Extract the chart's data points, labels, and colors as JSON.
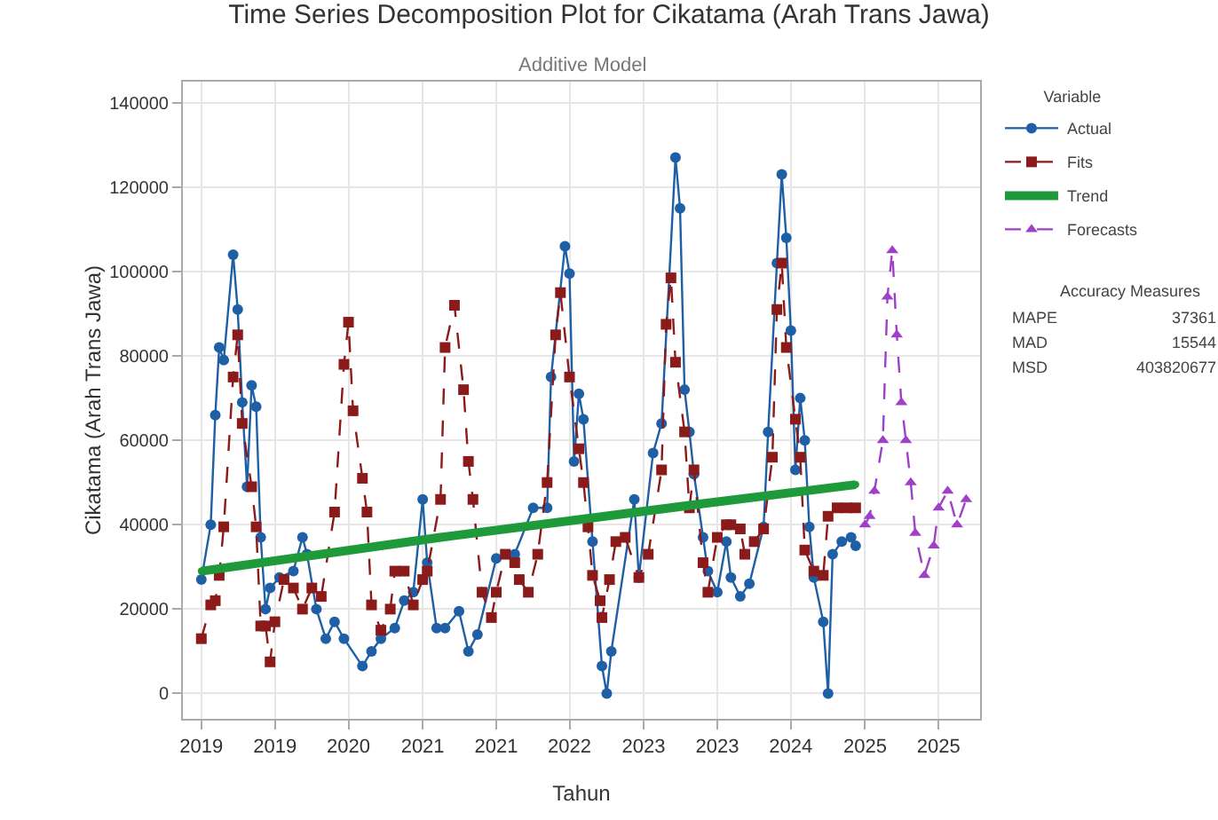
{
  "chart_data": {
    "type": "line",
    "title": "Time Series Decomposition Plot for Cikatama (Arah Trans Jawa)",
    "subtitle": "Additive Model",
    "xlabel": "Tahun",
    "ylabel": "Cikatama (Arah Trans Jawa)",
    "legend_title": "Variable",
    "legend": "top right",
    "grid": true,
    "xlim": [
      "2018-11-01",
      "2026-01-16"
    ],
    "xticks": [
      {
        "value": "2019-01",
        "label": "2019"
      },
      {
        "value": "2019-09",
        "label": "2019"
      },
      {
        "value": "2020-05",
        "label": "2020"
      },
      {
        "value": "2021-01",
        "label": "2021"
      },
      {
        "value": "2021-09",
        "label": "2021"
      },
      {
        "value": "2022-05",
        "label": "2022"
      },
      {
        "value": "2023-01",
        "label": "2023"
      },
      {
        "value": "2023-09",
        "label": "2023"
      },
      {
        "value": "2024-05",
        "label": "2024"
      },
      {
        "value": "2025-01",
        "label": "2025"
      },
      {
        "value": "2025-09",
        "label": "2025"
      }
    ],
    "ylim": [
      -6000,
      145000
    ],
    "yticks": [
      0,
      20000,
      40000,
      60000,
      80000,
      100000,
      120000,
      140000
    ],
    "series": [
      {
        "name": "Actual",
        "color": "#1f5fa6",
        "marker": "circle",
        "line_style": "solid",
        "x": [
          "2019-01-01",
          "2019-02-01",
          "2019-02-16",
          "2019-03-01",
          "2019-03-16",
          "2019-04-16",
          "2019-05-01",
          "2019-05-16",
          "2019-06-01",
          "2019-06-16",
          "2019-07-01",
          "2019-07-16",
          "2019-08-01",
          "2019-08-16",
          "2019-09-16",
          "2019-11-01",
          "2019-12-01",
          "2019-12-16",
          "2020-01-16",
          "2020-02-16",
          "2020-03-16",
          "2020-04-16",
          "2020-06-16",
          "2020-07-16",
          "2020-08-16",
          "2020-10-01",
          "2020-11-01",
          "2020-12-01",
          "2021-01-01",
          "2021-01-16",
          "2021-02-16",
          "2021-03-16",
          "2021-05-01",
          "2021-06-01",
          "2021-07-01",
          "2021-09-01",
          "2021-11-01",
          "2022-01-01",
          "2022-02-16",
          "2022-03-01",
          "2022-04-16",
          "2022-05-01",
          "2022-05-16",
          "2022-06-01",
          "2022-06-16",
          "2022-07-16",
          "2022-08-16",
          "2022-09-01",
          "2022-09-16",
          "2022-12-01",
          "2022-12-16",
          "2023-02-01",
          "2023-03-01",
          "2023-04-16",
          "2023-05-01",
          "2023-05-16",
          "2023-06-01",
          "2023-06-16",
          "2023-07-16",
          "2023-08-01",
          "2023-09-01",
          "2023-10-01",
          "2023-10-16",
          "2023-11-16",
          "2023-12-16",
          "2024-02-01",
          "2024-02-16",
          "2024-03-16",
          "2024-04-01",
          "2024-04-16",
          "2024-05-01",
          "2024-05-16",
          "2024-06-01",
          "2024-06-16",
          "2024-07-01",
          "2024-07-16",
          "2024-08-16",
          "2024-09-01",
          "2024-09-16",
          "2024-10-16",
          "2024-11-16",
          "2024-12-01"
        ],
        "values": [
          27000,
          40000,
          66000,
          82000,
          79000,
          104000,
          91000,
          69000,
          49000,
          73000,
          68000,
          37000,
          20000,
          25000,
          27500,
          29000,
          37000,
          33000,
          20000,
          13000,
          17000,
          13000,
          6500,
          10000,
          13000,
          15500,
          22000,
          24000,
          46000,
          31000,
          15500,
          15500,
          19500,
          10000,
          14000,
          32000,
          33000,
          44000,
          44000,
          75000,
          106000,
          99500,
          55000,
          71000,
          65000,
          36000,
          6500,
          0,
          10000,
          46000,
          27500,
          57000,
          64000,
          127000,
          115000,
          72000,
          62000,
          52000,
          37000,
          29000,
          24000,
          36000,
          27500,
          23000,
          26000,
          39500,
          62000,
          102000,
          123000,
          108000,
          86000,
          53000,
          70000,
          60000,
          39500,
          27500,
          17000,
          0,
          33000,
          36000,
          37000,
          35000
        ]
      },
      {
        "name": "Fits",
        "color": "#8b1a1a",
        "marker": "square",
        "line_style": "dashed",
        "x": [
          "2019-01-01",
          "2019-02-01",
          "2019-02-16",
          "2019-03-01",
          "2019-03-16",
          "2019-04-16",
          "2019-05-01",
          "2019-05-16",
          "2019-06-16",
          "2019-07-01",
          "2019-07-16",
          "2019-08-01",
          "2019-08-16",
          "2019-09-01",
          "2019-10-01",
          "2019-11-01",
          "2019-12-01",
          "2020-01-01",
          "2020-02-01",
          "2020-03-16",
          "2020-04-16",
          "2020-05-01",
          "2020-05-16",
          "2020-06-16",
          "2020-07-01",
          "2020-07-16",
          "2020-08-16",
          "2020-09-16",
          "2020-10-01",
          "2020-11-01",
          "2020-12-01",
          "2021-01-01",
          "2021-01-16",
          "2021-03-01",
          "2021-03-16",
          "2021-04-16",
          "2021-05-16",
          "2021-06-01",
          "2021-06-16",
          "2021-07-16",
          "2021-08-16",
          "2021-09-01",
          "2021-10-01",
          "2021-11-01",
          "2021-11-16",
          "2021-12-16",
          "2022-01-16",
          "2022-02-16",
          "2022-03-16",
          "2022-04-01",
          "2022-05-01",
          "2022-06-01",
          "2022-06-16",
          "2022-07-01",
          "2022-07-16",
          "2022-08-10",
          "2022-08-16",
          "2022-09-10",
          "2022-10-01",
          "2022-11-01",
          "2022-12-16",
          "2023-01-16",
          "2023-03-01",
          "2023-03-16",
          "2023-04-01",
          "2023-04-16",
          "2023-05-16",
          "2023-06-01",
          "2023-06-16",
          "2023-07-16",
          "2023-08-01",
          "2023-09-01",
          "2023-10-01",
          "2023-10-16",
          "2023-11-16",
          "2023-12-01",
          "2024-01-01",
          "2024-02-01",
          "2024-03-01",
          "2024-03-16",
          "2024-04-01",
          "2024-04-16",
          "2024-05-16",
          "2024-06-01",
          "2024-06-16",
          "2024-07-16",
          "2024-08-16",
          "2024-09-01",
          "2024-10-01",
          "2024-11-01",
          "2024-12-01"
        ],
        "values": [
          13000,
          21000,
          22000,
          28000,
          39500,
          75000,
          85000,
          64000,
          49000,
          39500,
          16000,
          16000,
          7500,
          17000,
          27000,
          25000,
          20000,
          25000,
          23000,
          43000,
          78000,
          88000,
          67000,
          51000,
          43000,
          21000,
          15000,
          20000,
          29000,
          29000,
          21000,
          27000,
          29000,
          46000,
          82000,
          92000,
          72000,
          55000,
          46000,
          24000,
          18000,
          24000,
          33000,
          31000,
          27000,
          24000,
          33000,
          50000,
          85000,
          95000,
          75000,
          58000,
          50000,
          39500,
          28000,
          22000,
          18000,
          27000,
          36000,
          37000,
          27500,
          33000,
          53000,
          87500,
          98500,
          78500,
          62000,
          44000,
          53000,
          31000,
          24000,
          37000,
          40000,
          40000,
          39000,
          33000,
          36000,
          39000,
          56000,
          91000,
          102000,
          82000,
          65000,
          56000,
          34000,
          29000,
          28000,
          42000,
          44000,
          44000,
          44000
        ]
      },
      {
        "name": "Trend",
        "color": "#1f9a3a",
        "marker": "circle",
        "line_style": "solid",
        "x": [
          "2019-01-01",
          "2021-03-01",
          "2023-07-16",
          "2024-12-01"
        ],
        "values": [
          29000,
          37000,
          45000,
          49500
        ]
      },
      {
        "name": "Forecasts",
        "color": "#a040c8",
        "marker": "triangle",
        "line_style": "dashed",
        "x": [
          "2025-01-01",
          "2025-01-16",
          "2025-02-01",
          "2025-03-01",
          "2025-03-16",
          "2025-04-01",
          "2025-04-16",
          "2025-05-01",
          "2025-05-16",
          "2025-06-01",
          "2025-06-16",
          "2025-07-16",
          "2025-08-16",
          "2025-09-01",
          "2025-10-01",
          "2025-11-01",
          "2025-12-01"
        ],
        "values": [
          40000,
          42000,
          48000,
          60000,
          94000,
          105000,
          85000,
          69000,
          60000,
          50000,
          38000,
          28000,
          35000,
          44000,
          48000,
          40000,
          46000
        ]
      }
    ],
    "annotations": [
      "Accuracy Measures",
      "MAPE 37361",
      "MAD 15544",
      "MSD 403820677"
    ]
  }
}
